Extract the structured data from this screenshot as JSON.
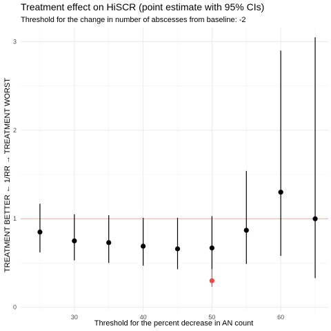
{
  "chart_data": {
    "type": "scatter",
    "title": "Treatment effect on HiSCR (point estimate with 95% CIs)",
    "subtitle": "Threshold for the change in number of abscesses from baseline: -2",
    "xlabel": "Threshold for the percent decrease in AN count",
    "ylabel": "TREATMENT BETTER ← 1/RR → TREATMENT WORST",
    "x_ticks": [
      30,
      40,
      50,
      60
    ],
    "y_ticks": [
      0,
      1,
      2,
      3
    ],
    "xlim": [
      22.2,
      66.9
    ],
    "ylim": [
      -0.05,
      3.16
    ],
    "grid": true,
    "reference_line": 1,
    "reference_line_color": "#f4b8a8",
    "point_color": "#000000",
    "highlight_color": "#e84a4a",
    "points": [
      {
        "x": 25,
        "y": 0.85,
        "lower": 0.62,
        "upper": 1.17
      },
      {
        "x": 30,
        "y": 0.75,
        "lower": 0.53,
        "upper": 1.05
      },
      {
        "x": 35,
        "y": 0.73,
        "lower": 0.5,
        "upper": 1.04
      },
      {
        "x": 40,
        "y": 0.69,
        "lower": 0.47,
        "upper": 1.01
      },
      {
        "x": 45,
        "y": 0.66,
        "lower": 0.43,
        "upper": 1.01
      },
      {
        "x": 50,
        "y": 0.67,
        "lower": 0.43,
        "upper": 1.03
      },
      {
        "x": 55,
        "y": 0.87,
        "lower": 0.49,
        "upper": 1.54
      },
      {
        "x": 60,
        "y": 1.3,
        "lower": 0.58,
        "upper": 2.9
      },
      {
        "x": 65,
        "y": 1.0,
        "lower": 0.33,
        "upper": 3.05
      }
    ],
    "highlight_points": [
      {
        "x": 50,
        "y": 0.3,
        "lower": 0.23,
        "upper": 0.43
      }
    ]
  }
}
